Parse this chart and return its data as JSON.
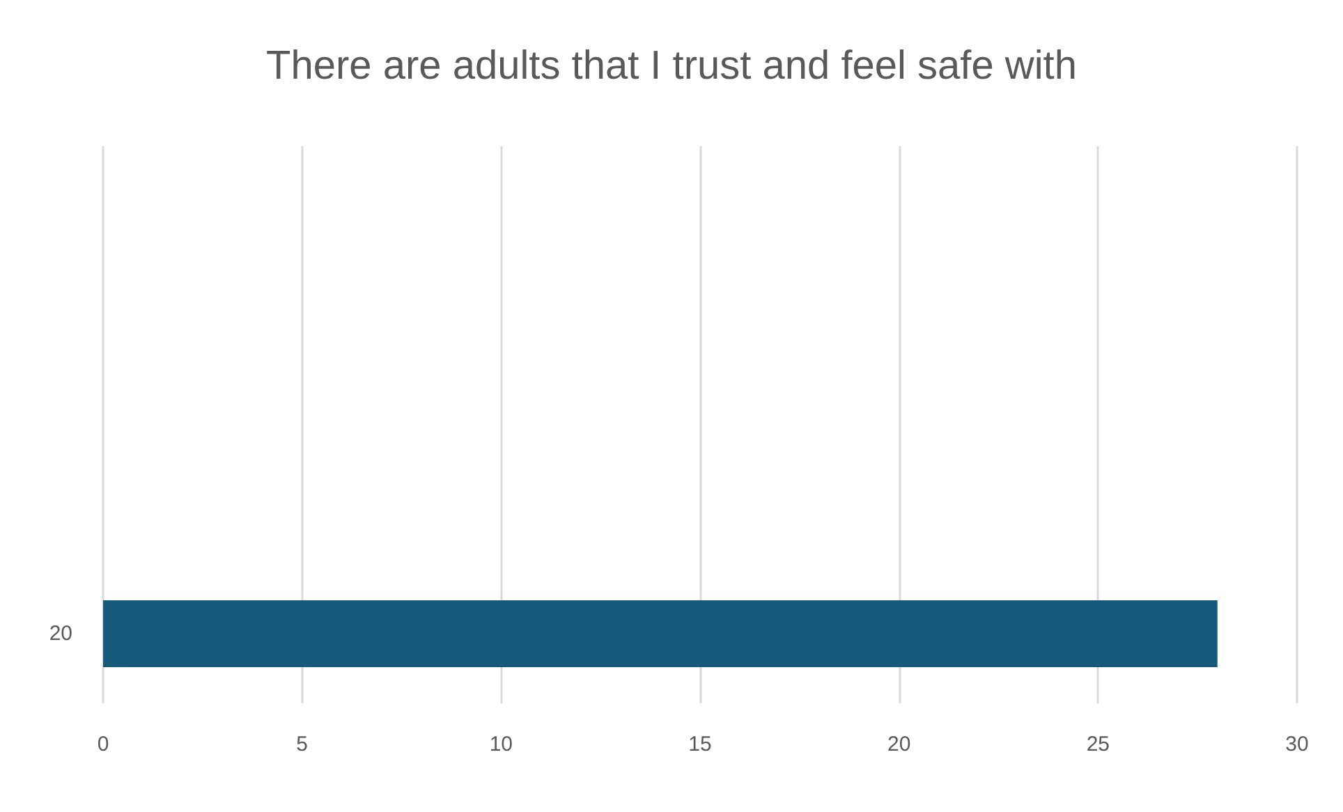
{
  "chart_data": {
    "type": "bar",
    "orientation": "horizontal",
    "title": "There are adults that I trust and feel safe with",
    "categories": [
      null,
      null,
      null,
      "20"
    ],
    "values": [
      null,
      null,
      null,
      28
    ],
    "color": "#155a7a",
    "xlim": [
      0,
      30
    ],
    "xticks": [
      0,
      5,
      10,
      15,
      20,
      25,
      30
    ],
    "grid": "x"
  }
}
